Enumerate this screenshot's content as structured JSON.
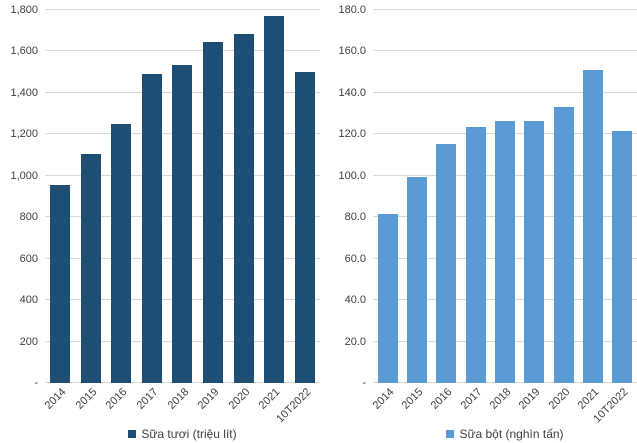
{
  "page": {
    "background_color": "#FFFFFF",
    "text_color": "#404040",
    "gridline_color": "#D9D9D9"
  },
  "chart_data": [
    {
      "type": "bar",
      "title": "",
      "categories": [
        "2014",
        "2015",
        "2016",
        "2017",
        "2018",
        "2019",
        "2020",
        "2021",
        "10T2022"
      ],
      "series": [
        {
          "name": "Sữa tươi (triệu lít)",
          "color": "#1F4E74",
          "values": [
            955,
            1103,
            1250,
            1490,
            1533,
            1646,
            1683,
            1770,
            1500
          ]
        }
      ],
      "xlabel": "",
      "ylabel": "",
      "ylim": [
        0,
        1800
      ],
      "ytick_interval": 200,
      "ytick_labels": [
        "-",
        "200",
        "400",
        "600",
        "800",
        "1,000",
        "1,200",
        "1,400",
        "1,600",
        "1,800"
      ],
      "grid": true,
      "legend_position": "bottom",
      "legend_label": "Sữa tươi (triệu lít)"
    },
    {
      "type": "bar",
      "title": "",
      "categories": [
        "2014",
        "2015",
        "2016",
        "2017",
        "2018",
        "2019",
        "2020",
        "2021",
        "10T2022"
      ],
      "series": [
        {
          "name": "Sữa bột (nghìn tấn)",
          "color": "#5B9BD5",
          "values": [
            81.8,
            99.3,
            115.4,
            123.7,
            126.4,
            126.4,
            133.0,
            151.2,
            121.5
          ]
        }
      ],
      "xlabel": "",
      "ylabel": "",
      "ylim": [
        0,
        180
      ],
      "ytick_interval": 20,
      "ytick_labels": [
        "-",
        "20.0",
        "40.0",
        "60.0",
        "80.0",
        "100.0",
        "120.0",
        "140.0",
        "160.0",
        "180.0"
      ],
      "grid": true,
      "legend_position": "bottom",
      "legend_label": "Sữa bột (nghìn tấn)"
    }
  ]
}
